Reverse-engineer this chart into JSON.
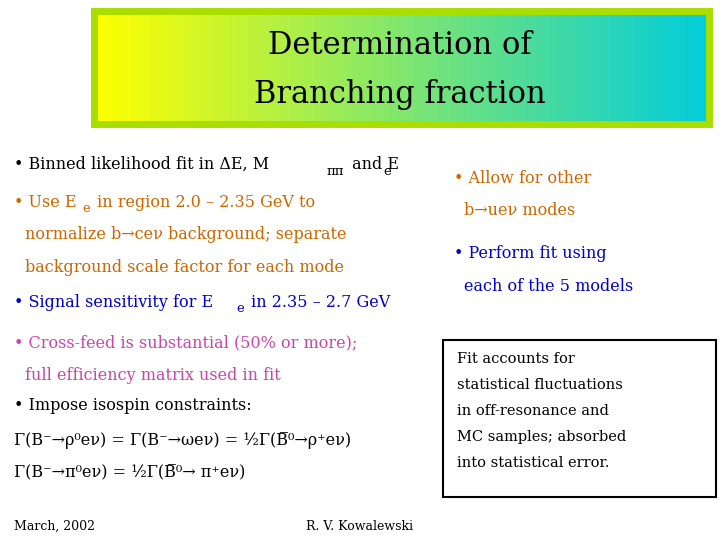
{
  "title_line1": "Determination of",
  "title_line2": "Branching fraction",
  "title_bg_color_left": "#ffff00",
  "title_bg_color_right": "#00ccdd",
  "title_border_color": "#aadd00",
  "title_text_color": "#000000",
  "bg_color": "#ffffff",
  "bullet1_text": "• Binned likelihood fit in ΔE, M",
  "bullet1_sub": "ππ",
  "bullet1_end": " and E",
  "bullet1_e": "e",
  "bullet1_color": "#000000",
  "bullet2_text": "• Use E",
  "bullet2_e": "e",
  "bullet2_rest": " in region 2.0 – 2.35 GeV to\n   normalize b→ceν background; separate\n   background scale factor for each mode",
  "bullet2_color": "#cc6600",
  "bullet3_text": "• Signal sensitivity for E",
  "bullet3_e": "e",
  "bullet3_rest": " in 2.35 – 2.7 GeV",
  "bullet3_color": "#0000cc",
  "bullet4_text": "• Cross-feed is substantial (50% or more);\n  full efficiency matrix used in fit",
  "bullet4_color": "#cc44aa",
  "bullet5_text": "• Impose isospin constraints:",
  "bullet5_color": "#000000",
  "gamma_line1": "Γ(B⁻→ρ⁰eν) = Γ(B⁻→ωeν) = ½Γ(B̅⁰→ρ⁺eν)",
  "gamma_line2": "Γ(B⁻→π⁰eν) = ½Γ(B̅⁰→ π⁺eν)",
  "gamma_color": "#000000",
  "right_bullet1": "• Allow for other\n   b→ueν modes",
  "right_bullet1_color": "#cc6600",
  "right_bullet2": "• Perform fit using\n   each of the 5 models",
  "right_bullet2_color": "#0000cc",
  "box_text": "Fit accounts for\nstatistical fluctuations\nin off-resonance and\nMC samples; absorbed\ninto statistical error.",
  "box_text_color": "#000000",
  "box_border_color": "#000000",
  "footer_left": "March, 2002",
  "footer_right": "R. V. Kowalewski",
  "footer_color": "#000000"
}
